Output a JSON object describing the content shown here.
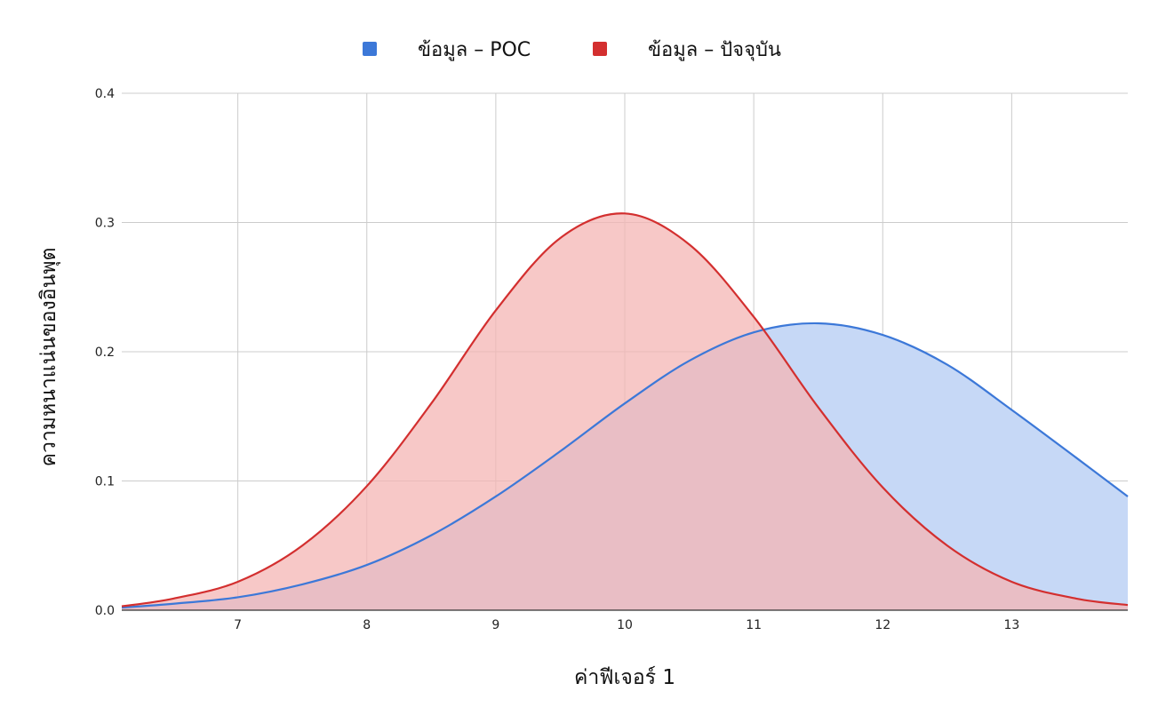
{
  "chart_data": {
    "type": "area",
    "xlabel": "ค่าฟีเจอร์ 1",
    "ylabel": "ความหนาแน่นของอินพุต",
    "xlim": [
      6.1,
      13.9
    ],
    "ylim": [
      0,
      0.4
    ],
    "x_ticks": [
      "7",
      "8",
      "9",
      "10",
      "11",
      "12",
      "13"
    ],
    "y_ticks": [
      "0.0",
      "0.1",
      "0.2",
      "0.3",
      "0.4"
    ],
    "grid": true,
    "legend_position": "top-center",
    "series": [
      {
        "name": "ข้อมูล – POC",
        "color": "#3c78d8",
        "fill": "#c6d8f6",
        "points": [
          {
            "x": 6.1,
            "y": 0.002
          },
          {
            "x": 6.5,
            "y": 0.005
          },
          {
            "x": 7.0,
            "y": 0.01
          },
          {
            "x": 7.5,
            "y": 0.02
          },
          {
            "x": 8.0,
            "y": 0.035
          },
          {
            "x": 8.5,
            "y": 0.058
          },
          {
            "x": 9.0,
            "y": 0.088
          },
          {
            "x": 9.5,
            "y": 0.123
          },
          {
            "x": 10.0,
            "y": 0.16
          },
          {
            "x": 10.5,
            "y": 0.193
          },
          {
            "x": 11.0,
            "y": 0.215
          },
          {
            "x": 11.5,
            "y": 0.222
          },
          {
            "x": 12.0,
            "y": 0.213
          },
          {
            "x": 12.5,
            "y": 0.19
          },
          {
            "x": 13.0,
            "y": 0.155
          },
          {
            "x": 13.5,
            "y": 0.118
          },
          {
            "x": 13.9,
            "y": 0.088
          }
        ]
      },
      {
        "name": "ข้อมูล – ปัจจุบัน",
        "color": "#d32f2f",
        "fill": "#f4b6b4",
        "points": [
          {
            "x": 6.1,
            "y": 0.003
          },
          {
            "x": 6.5,
            "y": 0.009
          },
          {
            "x": 7.0,
            "y": 0.022
          },
          {
            "x": 7.5,
            "y": 0.05
          },
          {
            "x": 8.0,
            "y": 0.096
          },
          {
            "x": 8.5,
            "y": 0.16
          },
          {
            "x": 9.0,
            "y": 0.232
          },
          {
            "x": 9.5,
            "y": 0.288
          },
          {
            "x": 10.0,
            "y": 0.307
          },
          {
            "x": 10.5,
            "y": 0.283
          },
          {
            "x": 11.0,
            "y": 0.227
          },
          {
            "x": 11.5,
            "y": 0.157
          },
          {
            "x": 12.0,
            "y": 0.095
          },
          {
            "x": 12.5,
            "y": 0.05
          },
          {
            "x": 13.0,
            "y": 0.022
          },
          {
            "x": 13.5,
            "y": 0.009
          },
          {
            "x": 13.9,
            "y": 0.004
          }
        ]
      }
    ]
  }
}
